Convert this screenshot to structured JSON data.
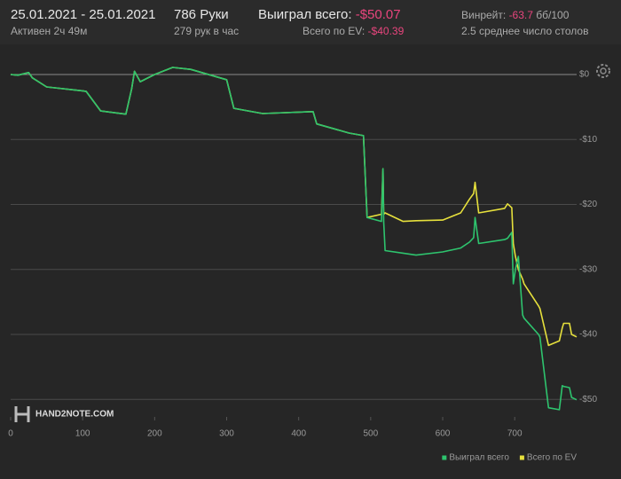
{
  "header": {
    "dates": "25.01.2021 - 25.01.2021",
    "active": "Активен 2ч 49м",
    "hands": "786 Руки",
    "hands_rate": "279 рук в час",
    "won_label": "Выиграл всего:",
    "won_value": "-$50.07",
    "ev_label": "Всего по EV:",
    "ev_value": "-$40.39",
    "winrate_label": "Винрейт:",
    "winrate_value": "-63.7",
    "winrate_unit": "бб/100",
    "tables": "2.5 среднее число столов"
  },
  "watermark": "HAND2NOTE.COM",
  "chart_data": {
    "type": "line",
    "x": [
      0,
      10,
      25,
      30,
      50,
      100,
      105,
      125,
      160,
      168,
      172,
      180,
      200,
      225,
      250,
      300,
      310,
      350,
      420,
      425,
      470,
      490,
      495,
      515,
      517,
      518,
      520,
      545,
      563,
      600,
      625,
      637,
      643,
      645,
      650,
      686,
      690,
      696,
      698,
      701,
      705,
      711,
      713,
      733,
      735,
      747,
      762,
      766,
      768,
      776,
      779,
      786
    ],
    "series": [
      {
        "name": "Всего по EV",
        "color": "#e6e03c",
        "values": [
          0,
          -0.1,
          0.3,
          -0.5,
          -1.9,
          -2.5,
          -2.6,
          -5.6,
          -6.1,
          -2.2,
          0.5,
          -1.1,
          0,
          1.1,
          0.8,
          -0.8,
          -5.2,
          -6.0,
          -5.7,
          -7.6,
          -9.0,
          -9.4,
          -22,
          -21.5,
          -14.5,
          -21.5,
          -21.3,
          -22.6,
          -22.5,
          -22.4,
          -21.3,
          -19.2,
          -18.3,
          -16.6,
          -21.3,
          -20.6,
          -19.9,
          -20.5,
          -26,
          -28,
          -30,
          -31.5,
          -32.2,
          -35.6,
          -36,
          -41.7,
          -41,
          -39,
          -38.3,
          -38.3,
          -40,
          -40.39
        ]
      },
      {
        "name": "Выиграл всего",
        "color": "#2ec46e",
        "values": [
          0,
          -0.1,
          0.3,
          -0.5,
          -1.9,
          -2.5,
          -2.6,
          -5.6,
          -6.1,
          -2.2,
          0.5,
          -1.1,
          0,
          1.1,
          0.8,
          -0.8,
          -5.2,
          -6.0,
          -5.7,
          -7.6,
          -9.0,
          -9.4,
          -22,
          -22.6,
          -14.5,
          -22.6,
          -27.1,
          -27.5,
          -27.8,
          -27.3,
          -26.7,
          -25.8,
          -25.1,
          -22,
          -26,
          -25.4,
          -25.2,
          -24.3,
          -32.2,
          -30,
          -28,
          -37,
          -37.5,
          -40,
          -40.4,
          -51.3,
          -51.6,
          -47.9,
          -48,
          -48.2,
          -49.7,
          -50.07
        ]
      }
    ],
    "xlim": [
      0,
      786
    ],
    "xticks": [
      0,
      100,
      200,
      300,
      400,
      500,
      600,
      700
    ],
    "ylim": [
      -52.7,
      2.6
    ],
    "yticks": [
      {
        "value": 0,
        "label": "$0"
      },
      {
        "value": -10,
        "label": "-$10"
      },
      {
        "value": -20,
        "label": "-$20"
      },
      {
        "value": -30,
        "label": "-$30"
      },
      {
        "value": -40,
        "label": "-$40"
      },
      {
        "value": -50,
        "label": "-$50"
      }
    ],
    "grid": true,
    "legend": "bottom-right"
  }
}
